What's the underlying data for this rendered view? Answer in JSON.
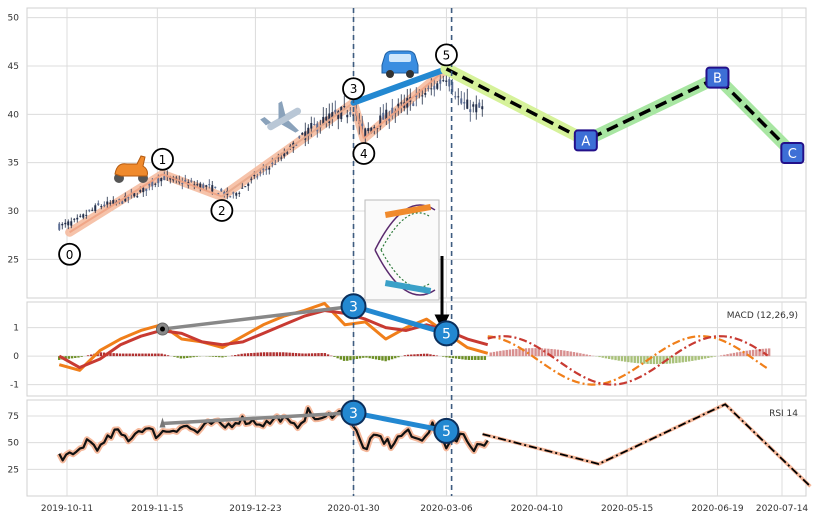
{
  "chart_data": [
    {
      "type": "candlestick",
      "panel": "price",
      "x_dates": [
        "2019-10-11",
        "2019-11-15",
        "2019-12-23",
        "2020-01-30",
        "2020-03-06",
        "2020-04-10",
        "2020-05-15",
        "2020-06-19",
        "2020-07-14"
      ],
      "ylim": [
        21,
        51
      ],
      "yticks": [
        25,
        30,
        35,
        40,
        45,
        50
      ],
      "grid": true,
      "candles_path": [
        [
          "2019-10-08",
          28.4
        ],
        [
          "2019-10-15",
          29.0
        ],
        [
          "2019-10-23",
          30.5
        ],
        [
          "2019-11-01",
          31.0
        ],
        [
          "2019-11-10",
          32.2
        ],
        [
          "2019-11-17",
          33.5
        ],
        [
          "2019-11-25",
          33.0
        ],
        [
          "2019-12-05",
          32.5
        ],
        [
          "2019-12-14",
          31.5
        ],
        [
          "2019-12-23",
          33.5
        ],
        [
          "2020-01-02",
          35.5
        ],
        [
          "2020-01-11",
          38.0
        ],
        [
          "2020-01-20",
          39.6
        ],
        [
          "2020-01-30",
          40.6
        ],
        [
          "2020-02-03",
          38.0
        ],
        [
          "2020-02-10",
          39.5
        ],
        [
          "2020-02-20",
          41.2
        ],
        [
          "2020-02-29",
          42.5
        ],
        [
          "2020-03-06",
          44.0
        ],
        [
          "2020-03-12",
          41.0
        ],
        [
          "2020-03-20",
          40.5
        ]
      ],
      "elliott_waves": {
        "labels": [
          "0",
          "1",
          "2",
          "3",
          "4",
          "5"
        ],
        "points": [
          [
            "2019-10-12",
            27.8
          ],
          [
            "2019-11-17",
            33.8
          ],
          [
            "2019-12-10",
            31.5
          ],
          [
            "2020-01-30",
            41.2
          ],
          [
            "2020-02-03",
            37.5
          ],
          [
            "2020-03-06",
            44.7
          ]
        ]
      },
      "projection": {
        "labels": [
          "A",
          "B",
          "C"
        ],
        "points": [
          [
            "2020-03-06",
            44.7
          ],
          [
            "2020-04-29",
            37.3
          ],
          [
            "2020-06-19",
            43.8
          ],
          [
            "2020-07-18",
            36.0
          ]
        ]
      },
      "vertical_markers": [
        "2020-01-30",
        "2020-03-08"
      ],
      "icons": [
        "scooter-icon",
        "airplane-icon",
        "car-icon",
        "roller-coaster-icon"
      ]
    },
    {
      "type": "line",
      "panel": "macd",
      "title": "MACD (12,26,9)",
      "ylim": [
        -1.4,
        1.9
      ],
      "yticks": [
        -1,
        0,
        1
      ],
      "series": [
        {
          "id": "macd",
          "color": "#f07f1a",
          "values": [
            [
              -0.3,
              -0.5,
              0.2,
              0.6,
              0.9,
              1.1,
              0.6,
              0.5,
              0.3,
              0.7,
              1.1,
              1.4,
              1.6,
              1.85,
              1.1,
              1.2,
              0.6,
              1.0,
              1.3,
              0.8,
              0.3,
              0.1
            ]
          ]
        },
        {
          "id": "signal",
          "color": "#c83a32",
          "values": [
            [
              0.0,
              -0.4,
              -0.1,
              0.4,
              0.7,
              0.9,
              0.8,
              0.5,
              0.4,
              0.5,
              0.8,
              1.1,
              1.4,
              1.6,
              1.5,
              1.3,
              1.0,
              0.9,
              1.1,
              0.9,
              0.6,
              0.4
            ]
          ]
        }
      ],
      "pivots": [
        {
          "label": "",
          "date": "2019-11-17",
          "value": 0.95
        },
        {
          "label": "3",
          "date": "2020-01-30",
          "value": 1.75
        },
        {
          "label": "5",
          "date": "2020-03-06",
          "value": 0.8
        }
      ]
    },
    {
      "type": "line",
      "panel": "rsi",
      "title": "RSI 14",
      "ylim": [
        0,
        90
      ],
      "yticks": [
        25,
        50,
        75
      ],
      "series": [
        {
          "id": "rsi",
          "color": "#111111",
          "values": [
            [
              38,
              36,
              52,
              45,
              60,
              54,
              64,
              58,
              62,
              66,
              60,
              68,
              65,
              72,
              70,
              68,
              74,
              64,
              78,
              70,
              80,
              74,
              44,
              56,
              48,
              60,
              52,
              66,
              48,
              58,
              46,
              52
            ]
          ]
        }
      ],
      "projection": [
        [
          "2020-03-20",
          58
        ],
        [
          "2020-05-04",
          30
        ],
        [
          "2020-06-22",
          86
        ],
        [
          "2020-07-25",
          9
        ]
      ],
      "pivots": [
        {
          "label": "",
          "date": "2019-11-17",
          "value": 68
        },
        {
          "label": "3",
          "date": "2020-01-30",
          "value": 78
        },
        {
          "label": "5",
          "date": "2020-03-06",
          "value": 61
        }
      ]
    }
  ]
}
